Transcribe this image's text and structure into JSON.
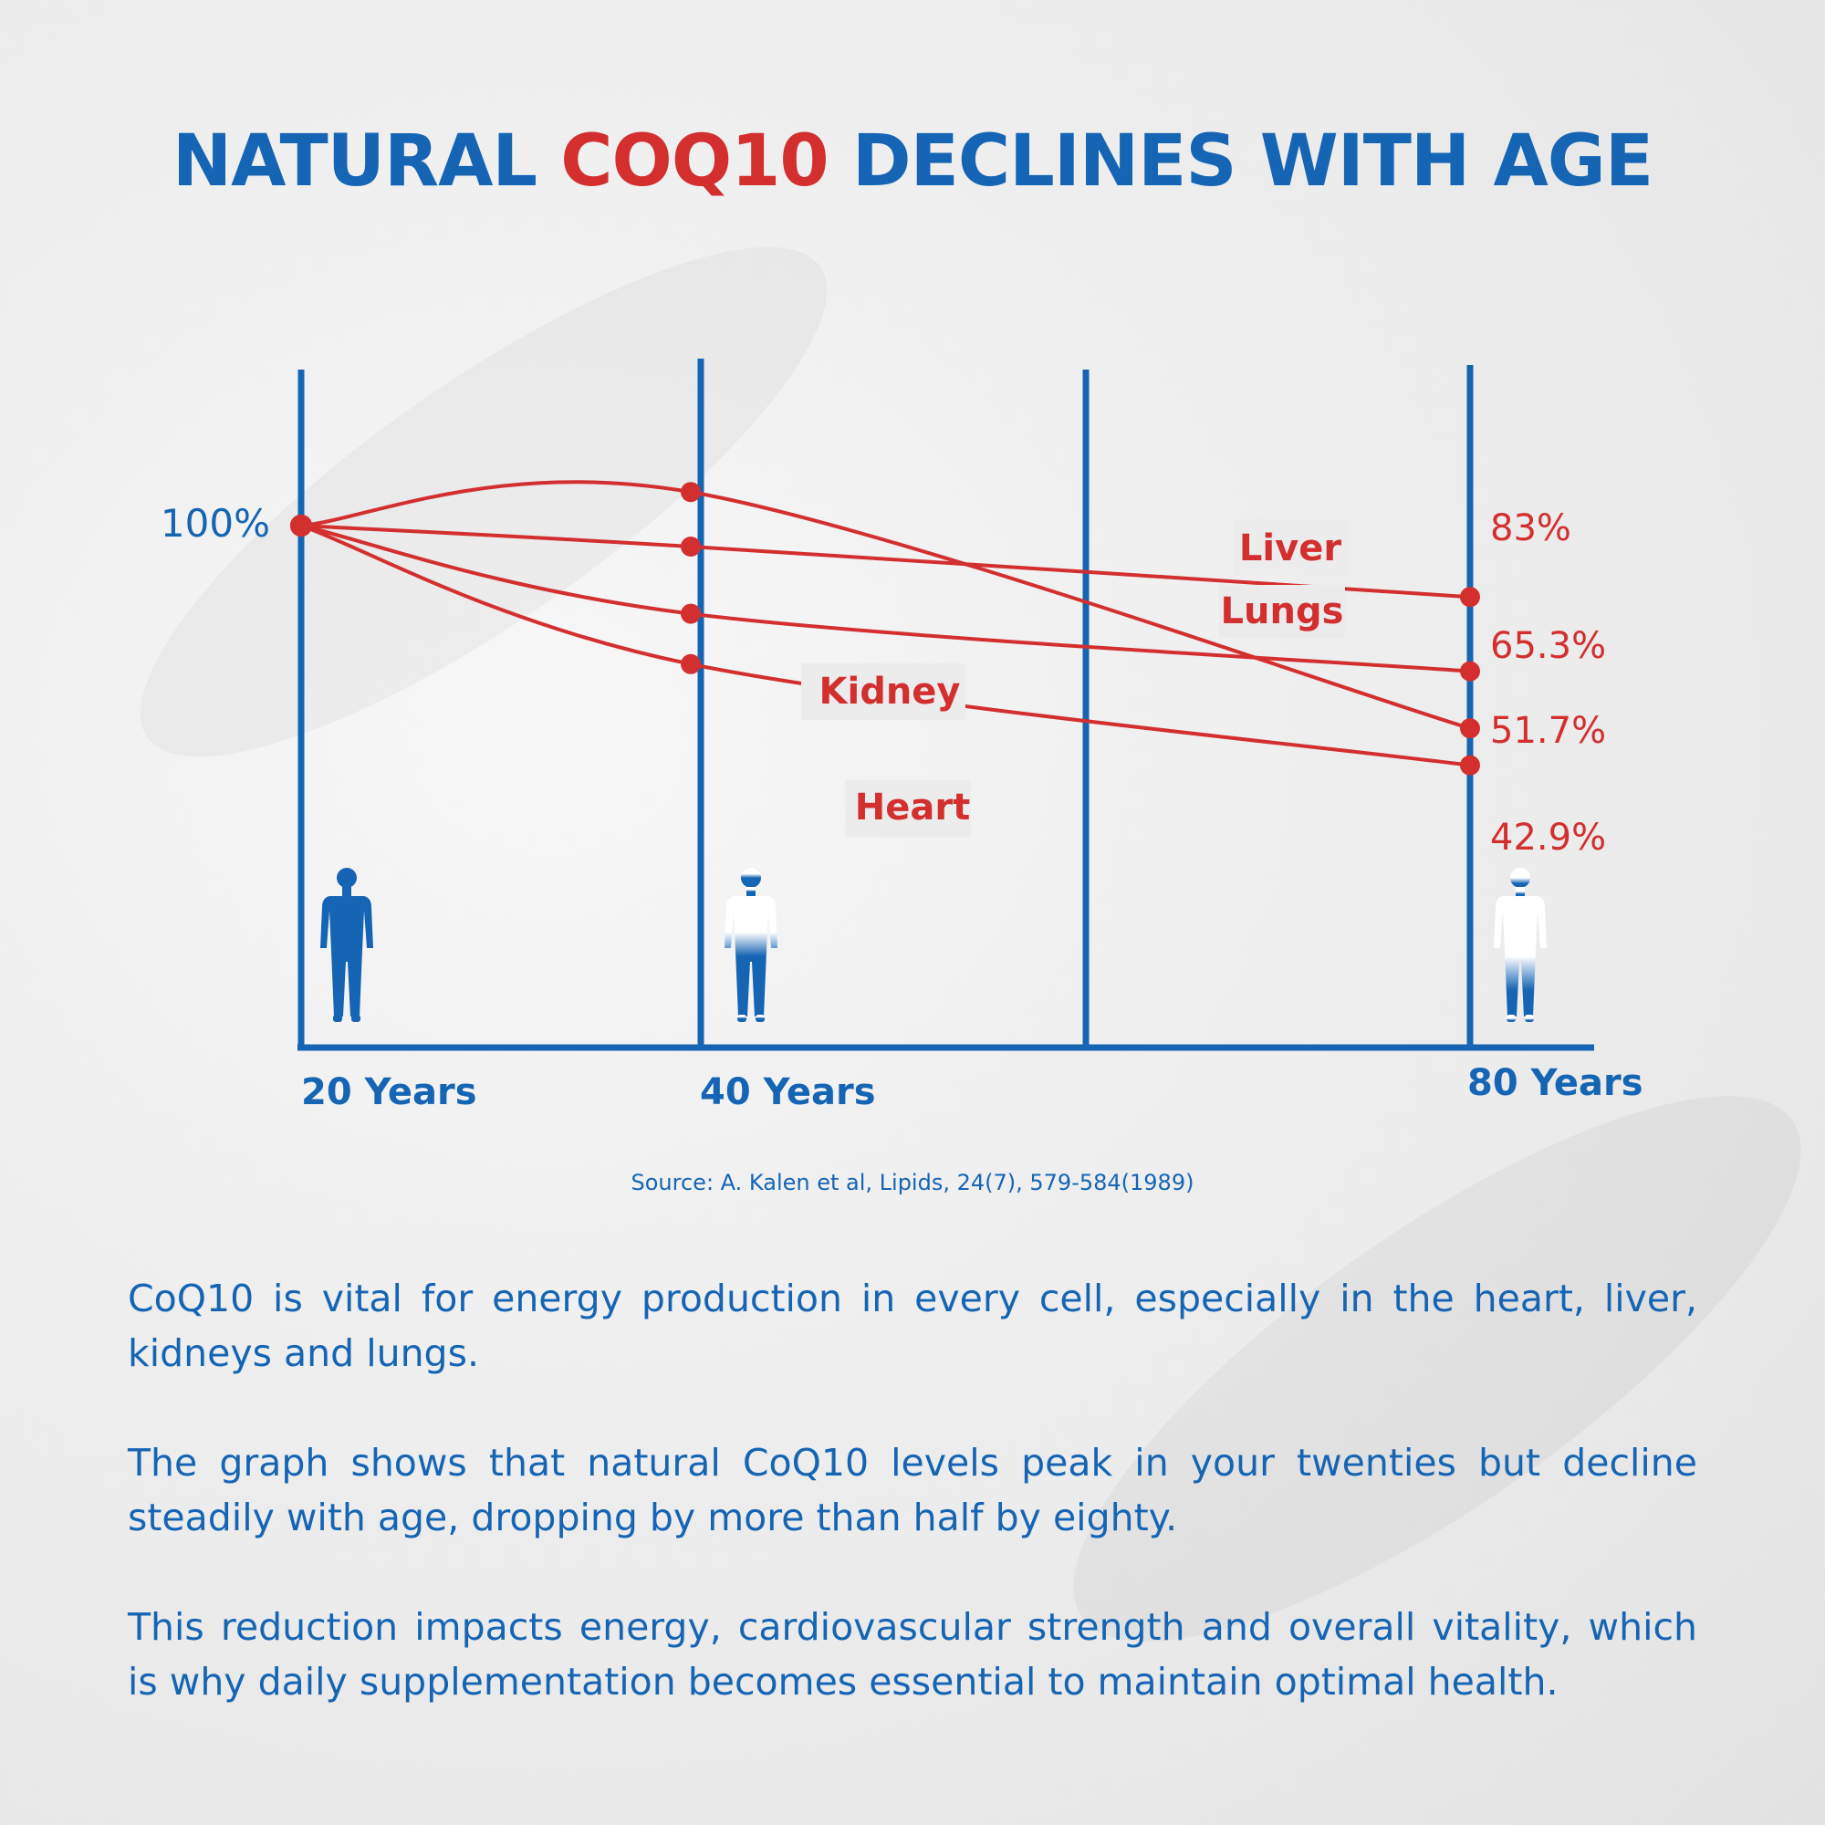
{
  "title": {
    "part1": "NATURAL ",
    "highlight": "COQ10",
    "part2": " DECLINES WITH AGE"
  },
  "colors": {
    "blue": "#1565b4",
    "red": "#d32f2f"
  },
  "chart_data": {
    "type": "line",
    "x_labels": [
      "20 Years",
      "40 Years",
      "80 Years"
    ],
    "x": [
      20,
      40,
      60,
      80
    ],
    "y_tick_label": "100%",
    "series": [
      {
        "name": "Lungs",
        "values": [
          100,
          108,
          null,
          51.7
        ],
        "end_label": "51.7%"
      },
      {
        "name": "Liver",
        "values": [
          100,
          95,
          null,
          83
        ],
        "end_label": "83%"
      },
      {
        "name": "Kidney",
        "values": [
          100,
          79,
          null,
          65.3
        ],
        "end_label": "65.3%"
      },
      {
        "name": "Heart",
        "values": [
          100,
          67,
          null,
          42.9
        ],
        "end_label": "42.9%"
      }
    ],
    "icons": [
      "person-full-icon",
      "person-partial-icon",
      "person-low-icon"
    ]
  },
  "source": "Source: A. Kalen et al, Lipids, 24(7), 579-584(1989)",
  "paragraphs": [
    "CoQ10 is vital for energy production in every cell, especially in the heart, liver, kidneys and lungs.",
    "The graph shows that natural CoQ10 levels peak in your twenties but decline steadily with age, dropping by more than half by eighty.",
    "This reduction impacts energy, cardiovascular strength and overall vitality, which is why daily supplementation becomes essential to maintain optimal health."
  ]
}
